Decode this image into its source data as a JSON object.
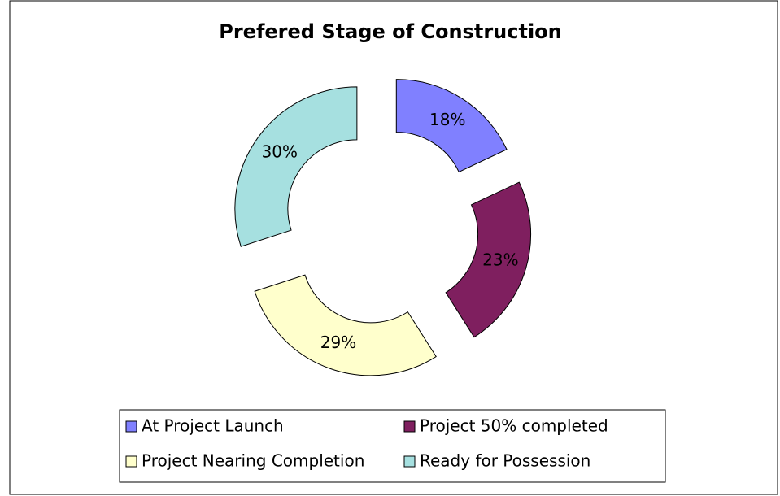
{
  "chart_data": {
    "type": "donut",
    "title": "Prefered Stage of Construction",
    "categories": [
      "At Project Launch",
      "Project 50% completed",
      "Project Nearing Completion",
      "Ready for Possession"
    ],
    "values": [
      18,
      23,
      29,
      30
    ],
    "value_labels": [
      "18%",
      "23%",
      "29%",
      "30%"
    ],
    "colors": [
      "#8080ff",
      "#7f1f5f",
      "#ffffcc",
      "#a6e0e0"
    ],
    "legend": "bottom",
    "exploded": true
  }
}
